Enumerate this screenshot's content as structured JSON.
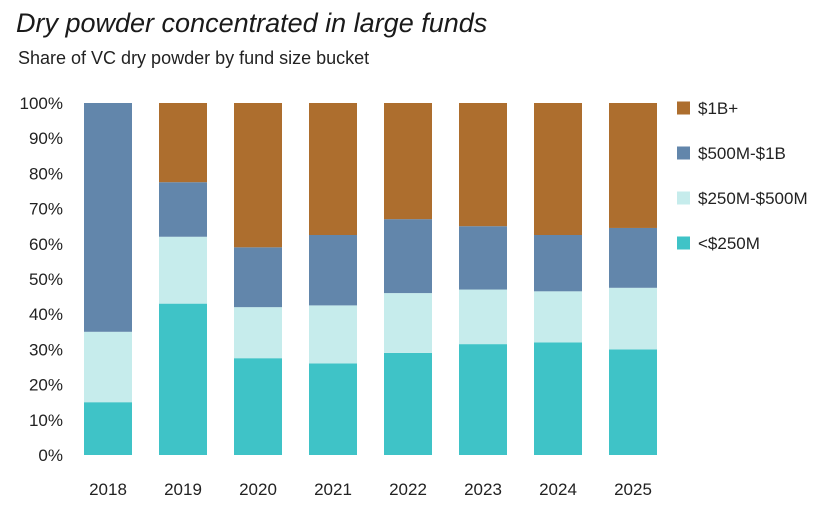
{
  "chart_data": {
    "type": "bar",
    "stacked": true,
    "title": "Dry powder concentrated in large funds",
    "subtitle": "Share of VC dry powder by fund size bucket",
    "categories": [
      "2018",
      "2019",
      "2020",
      "2021",
      "2022",
      "2023",
      "2024",
      "2025"
    ],
    "series": [
      {
        "name": "<$250M",
        "color": "#3fc3c7",
        "values": [
          15,
          43,
          27.5,
          26,
          29,
          31.5,
          32,
          30
        ]
      },
      {
        "name": "$250M-$500M",
        "color": "#c6ecec",
        "values": [
          20,
          19,
          14.5,
          16.5,
          17,
          15.5,
          14.5,
          17.5
        ]
      },
      {
        "name": "$500M-$1B",
        "color": "#6286ab",
        "values": [
          65,
          15.5,
          17,
          20,
          21,
          18,
          16,
          17
        ]
      },
      {
        "name": "$1B+",
        "color": "#ad6e2e",
        "values": [
          0,
          22.5,
          41,
          37.5,
          33,
          35,
          37.5,
          35.5
        ]
      }
    ],
    "y_ticks": [
      "0%",
      "10%",
      "20%",
      "30%",
      "40%",
      "50%",
      "60%",
      "70%",
      "80%",
      "90%",
      "100%"
    ],
    "ylim": [
      0,
      100
    ],
    "xlabel": "",
    "ylabel": "",
    "legend_position": "right",
    "legend_order": [
      "$1B+",
      "$500M-$1B",
      "$250M-$500M",
      "<$250M"
    ]
  }
}
